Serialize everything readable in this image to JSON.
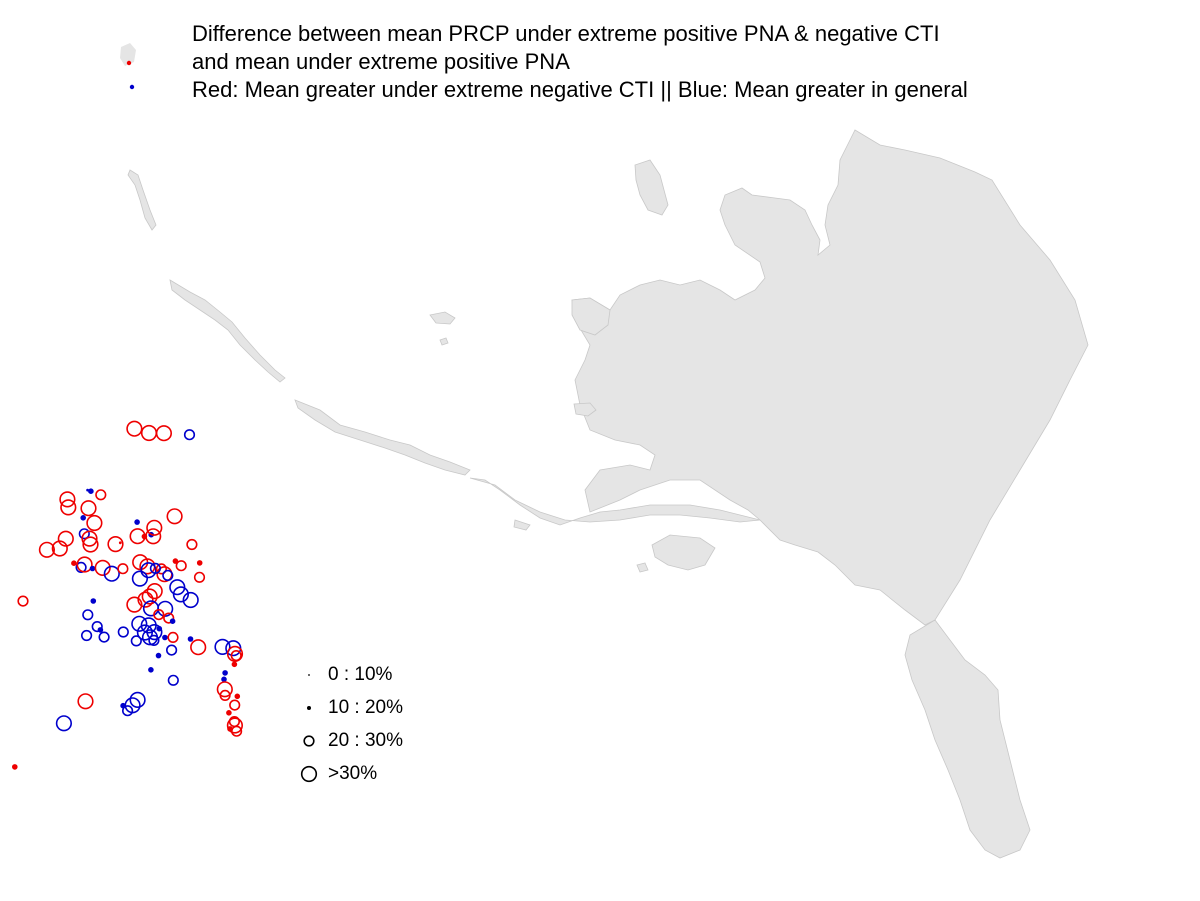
{
  "title": {
    "line1": "Difference between mean PRCP under extreme positive PNA & negative CTI",
    "line2": "and mean under extreme positive PNA",
    "line3": "Red: Mean greater under extreme negative CTI || Blue: Mean greater in general"
  },
  "legend": {
    "items": [
      {
        "label": "0 : 10%",
        "size_class": 1
      },
      {
        "label": "10 : 20%",
        "size_class": 2
      },
      {
        "label": "20 : 30%",
        "size_class": 3
      },
      {
        "label": ">30%",
        "size_class": 4
      }
    ]
  },
  "colors": {
    "land": "#e5e5e5",
    "coast": "#c8c8c8",
    "red": "#ee0000",
    "blue": "#0000cc",
    "legend_symbol": "#000000"
  },
  "stations": [
    {
      "lat": 71.4,
      "lon": -156.7,
      "color": "red",
      "size_class": 4
    },
    {
      "lat": 71.0,
      "lon": -154.5,
      "color": "red",
      "size_class": 4
    },
    {
      "lat": 70.8,
      "lon": -152.3,
      "color": "red",
      "size_class": 4
    },
    {
      "lat": 70.4,
      "lon": -148.5,
      "color": "blue",
      "size_class": 3
    },
    {
      "lat": 68.8,
      "lon": -166.0,
      "color": "red",
      "size_class": 4
    },
    {
      "lat": 68.4,
      "lon": -165.8,
      "color": "red",
      "size_class": 4
    },
    {
      "lat": 68.9,
      "lon": -162.6,
      "color": "blue",
      "size_class": 2
    },
    {
      "lat": 68.6,
      "lon": -161.1,
      "color": "red",
      "size_class": 3
    },
    {
      "lat": 68.1,
      "lon": -162.8,
      "color": "red",
      "size_class": 4
    },
    {
      "lat": 69.0,
      "lon": -163.1,
      "color": "blue",
      "size_class": 1
    },
    {
      "lat": 67.7,
      "lon": -163.5,
      "color": "blue",
      "size_class": 2
    },
    {
      "lat": 67.3,
      "lon": -161.8,
      "color": "red",
      "size_class": 4
    },
    {
      "lat": 66.9,
      "lon": -163.2,
      "color": "blue",
      "size_class": 3
    },
    {
      "lat": 66.9,
      "lon": -165.9,
      "color": "red",
      "size_class": 4
    },
    {
      "lat": 66.6,
      "lon": -162.4,
      "color": "red",
      "size_class": 4
    },
    {
      "lat": 66.5,
      "lon": -166.7,
      "color": "red",
      "size_class": 4
    },
    {
      "lat": 66.6,
      "lon": -168.6,
      "color": "red",
      "size_class": 4
    },
    {
      "lat": 66.3,
      "lon": -162.2,
      "color": "red",
      "size_class": 4
    },
    {
      "lat": 66.0,
      "lon": -158.5,
      "color": "red",
      "size_class": 4
    },
    {
      "lat": 66.0,
      "lon": -157.8,
      "color": "red",
      "size_class": 1
    },
    {
      "lat": 66.1,
      "lon": -155.3,
      "color": "red",
      "size_class": 4
    },
    {
      "lat": 66.0,
      "lon": -154.3,
      "color": "red",
      "size_class": 2
    },
    {
      "lat": 66.0,
      "lon": -153.3,
      "color": "blue",
      "size_class": 2
    },
    {
      "lat": 65.9,
      "lon": -153.0,
      "color": "red",
      "size_class": 4
    },
    {
      "lat": 66.3,
      "lon": -152.9,
      "color": "red",
      "size_class": 4
    },
    {
      "lat": 66.8,
      "lon": -155.5,
      "color": "blue",
      "size_class": 2
    },
    {
      "lat": 66.6,
      "lon": -150.0,
      "color": "red",
      "size_class": 4
    },
    {
      "lat": 65.6,
      "lon": -164.5,
      "color": "red",
      "size_class": 2
    },
    {
      "lat": 65.3,
      "lon": -163.4,
      "color": "blue",
      "size_class": 3
    },
    {
      "lat": 65.4,
      "lon": -162.9,
      "color": "red",
      "size_class": 4
    },
    {
      "lat": 65.1,
      "lon": -161.7,
      "color": "blue",
      "size_class": 2
    },
    {
      "lat": 65.0,
      "lon": -160.2,
      "color": "red",
      "size_class": 4
    },
    {
      "lat": 64.6,
      "lon": -158.8,
      "color": "blue",
      "size_class": 4
    },
    {
      "lat": 64.7,
      "lon": -157.2,
      "color": "red",
      "size_class": 3
    },
    {
      "lat": 64.8,
      "lon": -154.7,
      "color": "red",
      "size_class": 4
    },
    {
      "lat": 64.5,
      "lon": -153.6,
      "color": "red",
      "size_class": 4
    },
    {
      "lat": 64.3,
      "lon": -153.4,
      "color": "blue",
      "size_class": 4
    },
    {
      "lat": 64.2,
      "lon": -151.5,
      "color": "red",
      "size_class": 3
    },
    {
      "lat": 63.9,
      "lon": -151.0,
      "color": "red",
      "size_class": 4
    },
    {
      "lat": 64.4,
      "lon": -149.5,
      "color": "red",
      "size_class": 2
    },
    {
      "lat": 64.1,
      "lon": -148.6,
      "color": "red",
      "size_class": 3
    },
    {
      "lat": 65.0,
      "lon": -147.2,
      "color": "red",
      "size_class": 3
    },
    {
      "lat": 64.0,
      "lon": -154.6,
      "color": "blue",
      "size_class": 4
    },
    {
      "lat": 64.3,
      "lon": -152.4,
      "color": "blue",
      "size_class": 3
    },
    {
      "lat": 63.8,
      "lon": -150.5,
      "color": "blue",
      "size_class": 3
    },
    {
      "lat": 63.2,
      "lon": -152.3,
      "color": "red",
      "size_class": 4
    },
    {
      "lat": 63.0,
      "lon": -153.0,
      "color": "red",
      "size_class": 4
    },
    {
      "lat": 62.9,
      "lon": -153.6,
      "color": "red",
      "size_class": 4
    },
    {
      "lat": 62.8,
      "lon": -155.2,
      "color": "red",
      "size_class": 4
    },
    {
      "lat": 62.4,
      "lon": -152.7,
      "color": "blue",
      "size_class": 4
    },
    {
      "lat": 62.2,
      "lon": -150.6,
      "color": "blue",
      "size_class": 4
    },
    {
      "lat": 62.0,
      "lon": -151.5,
      "color": "red",
      "size_class": 3
    },
    {
      "lat": 63.1,
      "lon": -149.0,
      "color": "blue",
      "size_class": 4
    },
    {
      "lat": 62.7,
      "lon": -148.4,
      "color": "blue",
      "size_class": 4
    },
    {
      "lat": 62.3,
      "lon": -146.9,
      "color": "blue",
      "size_class": 4
    },
    {
      "lat": 63.3,
      "lon": -145.8,
      "color": "red",
      "size_class": 3
    },
    {
      "lat": 64.0,
      "lon": -145.9,
      "color": "red",
      "size_class": 2
    },
    {
      "lat": 61.7,
      "lon": -150.0,
      "color": "red",
      "size_class": 3
    },
    {
      "lat": 61.5,
      "lon": -149.4,
      "color": "blue",
      "size_class": 2
    },
    {
      "lat": 61.3,
      "lon": -151.3,
      "color": "blue",
      "size_class": 2
    },
    {
      "lat": 61.6,
      "lon": -156.6,
      "color": "blue",
      "size_class": 3
    },
    {
      "lat": 61.8,
      "lon": -154.3,
      "color": "blue",
      "size_class": 4
    },
    {
      "lat": 61.6,
      "lon": -152.9,
      "color": "blue",
      "size_class": 4
    },
    {
      "lat": 61.3,
      "lon": -153.4,
      "color": "blue",
      "size_class": 4
    },
    {
      "lat": 61.2,
      "lon": -152.0,
      "color": "blue",
      "size_class": 4
    },
    {
      "lat": 61.0,
      "lon": -152.6,
      "color": "blue",
      "size_class": 4
    },
    {
      "lat": 60.8,
      "lon": -152.0,
      "color": "blue",
      "size_class": 3
    },
    {
      "lat": 61.0,
      "lon": -154.6,
      "color": "blue",
      "size_class": 3
    },
    {
      "lat": 62.2,
      "lon": -160.5,
      "color": "blue",
      "size_class": 3
    },
    {
      "lat": 61.9,
      "lon": -162.0,
      "color": "blue",
      "size_class": 3
    },
    {
      "lat": 62.0,
      "lon": -160.0,
      "color": "blue",
      "size_class": 2
    },
    {
      "lat": 61.6,
      "lon": -159.4,
      "color": "blue",
      "size_class": 3
    },
    {
      "lat": 62.9,
      "lon": -162.0,
      "color": "blue",
      "size_class": 3
    },
    {
      "lat": 63.5,
      "lon": -161.3,
      "color": "blue",
      "size_class": 2
    },
    {
      "lat": 60.8,
      "lon": -150.4,
      "color": "blue",
      "size_class": 2
    },
    {
      "lat": 60.7,
      "lon": -149.2,
      "color": "red",
      "size_class": 3
    },
    {
      "lat": 60.1,
      "lon": -149.3,
      "color": "blue",
      "size_class": 3
    },
    {
      "lat": 60.0,
      "lon": -151.2,
      "color": "blue",
      "size_class": 2
    },
    {
      "lat": 59.4,
      "lon": -152.2,
      "color": "blue",
      "size_class": 2
    },
    {
      "lat": 59.9,
      "lon": -145.4,
      "color": "red",
      "size_class": 4
    },
    {
      "lat": 60.4,
      "lon": -146.6,
      "color": "blue",
      "size_class": 2
    },
    {
      "lat": 58.6,
      "lon": -148.8,
      "color": "blue",
      "size_class": 3
    },
    {
      "lat": 58.1,
      "lon": -153.9,
      "color": "blue",
      "size_class": 4
    },
    {
      "lat": 57.9,
      "lon": -154.6,
      "color": "blue",
      "size_class": 4
    },
    {
      "lat": 57.7,
      "lon": -155.3,
      "color": "blue",
      "size_class": 3
    },
    {
      "lat": 58.0,
      "lon": -156.0,
      "color": "blue",
      "size_class": 2
    },
    {
      "lat": 58.7,
      "lon": -161.6,
      "color": "red",
      "size_class": 4
    },
    {
      "lat": 57.9,
      "lon": -164.6,
      "color": "blue",
      "size_class": 4
    },
    {
      "lat": 56.4,
      "lon": -171.5,
      "color": "red",
      "size_class": 2
    },
    {
      "lat": 56.1,
      "lon": -176.6,
      "color": "red",
      "size_class": 3
    },
    {
      "lat": 64.4,
      "lon": -171.7,
      "color": "red",
      "size_class": 3
    },
    {
      "lat": 59.6,
      "lon": -141.8,
      "color": "blue",
      "size_class": 4
    },
    {
      "lat": 59.4,
      "lon": -140.2,
      "color": "blue",
      "size_class": 4
    },
    {
      "lat": 59.1,
      "lon": -139.9,
      "color": "red",
      "size_class": 4
    },
    {
      "lat": 59.0,
      "lon": -139.7,
      "color": "red",
      "size_class": 3
    },
    {
      "lat": 58.6,
      "lon": -139.9,
      "color": "red",
      "size_class": 2
    },
    {
      "lat": 58.3,
      "lon": -141.2,
      "color": "blue",
      "size_class": 2
    },
    {
      "lat": 58.0,
      "lon": -141.3,
      "color": "blue",
      "size_class": 2
    },
    {
      "lat": 57.5,
      "lon": -141.1,
      "color": "red",
      "size_class": 4
    },
    {
      "lat": 57.2,
      "lon": -141.0,
      "color": "red",
      "size_class": 3
    },
    {
      "lat": 57.0,
      "lon": -139.2,
      "color": "red",
      "size_class": 2
    },
    {
      "lat": 56.6,
      "lon": -139.5,
      "color": "red",
      "size_class": 3
    },
    {
      "lat": 56.3,
      "lon": -140.3,
      "color": "red",
      "size_class": 2
    },
    {
      "lat": 55.8,
      "lon": -139.4,
      "color": "red",
      "size_class": 3
    },
    {
      "lat": 55.6,
      "lon": -139.3,
      "color": "red",
      "size_class": 4
    },
    {
      "lat": 55.5,
      "lon": -140.0,
      "color": "red",
      "size_class": 2
    },
    {
      "lat": 55.3,
      "lon": -139.0,
      "color": "red",
      "size_class": 3
    }
  ]
}
